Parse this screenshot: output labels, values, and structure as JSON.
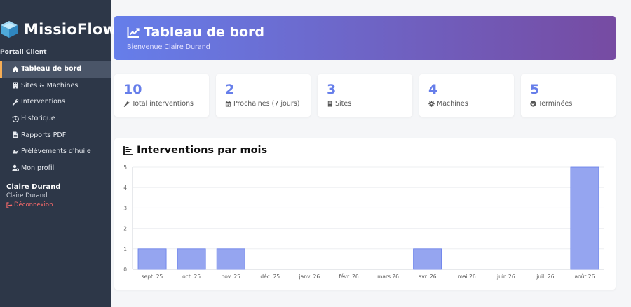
{
  "brand": {
    "name": "MissioFlow",
    "icon": "cube-icon"
  },
  "sidebar": {
    "section_label": "Portail Client",
    "items": [
      {
        "label": "Tableau de bord",
        "icon": "home-icon",
        "active": true
      },
      {
        "label": "Sites & Machines",
        "icon": "building-icon",
        "active": false
      },
      {
        "label": "Interventions",
        "icon": "wrench-icon",
        "active": false
      },
      {
        "label": "Historique",
        "icon": "history-icon",
        "active": false
      },
      {
        "label": "Rapports PDF",
        "icon": "file-pdf-icon",
        "active": false
      },
      {
        "label": "Prélèvements d'huile",
        "icon": "oil-can-icon",
        "active": false
      },
      {
        "label": "Mon profil",
        "icon": "user-cog-icon",
        "active": false
      }
    ],
    "user": {
      "name": "Claire Durand",
      "subtitle": "Claire Durand",
      "logout_label": "Déconnexion"
    }
  },
  "header": {
    "title": "Tableau de bord",
    "welcome": "Bienvenue Claire Durand",
    "icon": "chart-line-icon"
  },
  "stats": [
    {
      "value": "10",
      "label": "Total interventions",
      "icon": "wrench-icon"
    },
    {
      "value": "2",
      "label": "Prochaines (7 jours)",
      "icon": "calendar-icon"
    },
    {
      "value": "3",
      "label": "Sites",
      "icon": "building-icon"
    },
    {
      "value": "4",
      "label": "Machines",
      "icon": "gear-icon"
    },
    {
      "value": "5",
      "label": "Terminées",
      "icon": "check-circle-icon"
    }
  ],
  "colors": {
    "accent": "#667eea",
    "bar_fill": "#95a5f0",
    "bar_stroke": "#667eea",
    "sidebar_bg": "#2d3748",
    "active_border": "#f6ad55",
    "logout": "#fc6b6b"
  },
  "chart_title": "Interventions par mois",
  "chart_data": {
    "type": "bar",
    "categories": [
      "sept. 25",
      "oct. 25",
      "nov. 25",
      "déc. 25",
      "janv. 26",
      "févr. 26",
      "mars 26",
      "avr. 26",
      "mai 26",
      "juin 26",
      "juil. 26",
      "août 26"
    ],
    "values": [
      1,
      1,
      1,
      0,
      0,
      0,
      0,
      1,
      0,
      0,
      0,
      5
    ],
    "title": "Interventions par mois",
    "xlabel": "",
    "ylabel": "",
    "ylim": [
      0,
      5
    ],
    "yticks": [
      "0",
      "1",
      "2",
      "3",
      "4",
      "5"
    ],
    "grid": true,
    "legend": "none"
  }
}
